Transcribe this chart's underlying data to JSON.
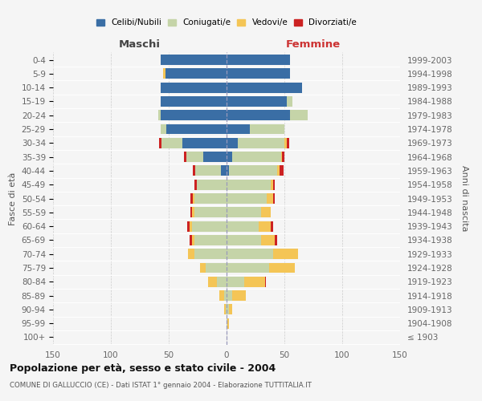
{
  "age_groups": [
    "100+",
    "95-99",
    "90-94",
    "85-89",
    "80-84",
    "75-79",
    "70-74",
    "65-69",
    "60-64",
    "55-59",
    "50-54",
    "45-49",
    "40-44",
    "35-39",
    "30-34",
    "25-29",
    "20-24",
    "15-19",
    "10-14",
    "5-9",
    "0-4"
  ],
  "birth_years": [
    "≤ 1903",
    "1904-1908",
    "1909-1913",
    "1914-1918",
    "1919-1923",
    "1924-1928",
    "1929-1933",
    "1934-1938",
    "1939-1943",
    "1944-1948",
    "1949-1953",
    "1954-1958",
    "1959-1963",
    "1964-1968",
    "1969-1973",
    "1974-1978",
    "1979-1983",
    "1984-1988",
    "1989-1993",
    "1994-1998",
    "1999-2003"
  ],
  "maschi": {
    "celibi": [
      0,
      0,
      0,
      0,
      0,
      0,
      0,
      0,
      0,
      0,
      0,
      0,
      5,
      20,
      38,
      52,
      57,
      57,
      57,
      53,
      57
    ],
    "coniugati": [
      0,
      0,
      1,
      2,
      8,
      18,
      28,
      28,
      30,
      28,
      28,
      26,
      22,
      15,
      18,
      5,
      2,
      0,
      0,
      0,
      0
    ],
    "vedovi": [
      0,
      0,
      1,
      4,
      8,
      5,
      5,
      2,
      2,
      2,
      1,
      0,
      0,
      0,
      0,
      0,
      0,
      0,
      0,
      2,
      0
    ],
    "divorziati": [
      0,
      0,
      0,
      0,
      0,
      0,
      0,
      2,
      2,
      1,
      2,
      2,
      2,
      2,
      2,
      0,
      0,
      0,
      0,
      0,
      0
    ]
  },
  "femmine": {
    "nubili": [
      0,
      0,
      0,
      0,
      0,
      0,
      0,
      0,
      0,
      0,
      0,
      0,
      2,
      5,
      10,
      20,
      55,
      52,
      65,
      55,
      55
    ],
    "coniugate": [
      0,
      1,
      2,
      5,
      15,
      37,
      40,
      30,
      28,
      30,
      35,
      38,
      42,
      42,
      40,
      30,
      15,
      5,
      0,
      0,
      0
    ],
    "vedove": [
      0,
      1,
      3,
      12,
      18,
      22,
      22,
      12,
      10,
      8,
      5,
      2,
      2,
      1,
      2,
      0,
      0,
      0,
      0,
      0,
      0
    ],
    "divorziate": [
      0,
      0,
      0,
      0,
      1,
      0,
      0,
      2,
      2,
      0,
      2,
      2,
      3,
      2,
      2,
      0,
      0,
      0,
      0,
      0,
      0
    ]
  },
  "colors": {
    "celibi_nubili": "#3A6EA5",
    "coniugati": "#C5D4A8",
    "vedovi": "#F4C556",
    "divorziati": "#CC2222"
  },
  "xlim": 150,
  "title": "Popolazione per età, sesso e stato civile - 2004",
  "subtitle": "COMUNE DI GALLUCCIO (CE) - Dati ISTAT 1° gennaio 2004 - Elaborazione TUTTITALIA.IT",
  "ylabel_left": "Fasce di età",
  "ylabel_right": "Anni di nascita",
  "xlabel_left": "Maschi",
  "xlabel_right": "Femmine",
  "background_color": "#f5f5f5",
  "xticks": [
    -150,
    -100,
    -50,
    0,
    50,
    100,
    150
  ]
}
